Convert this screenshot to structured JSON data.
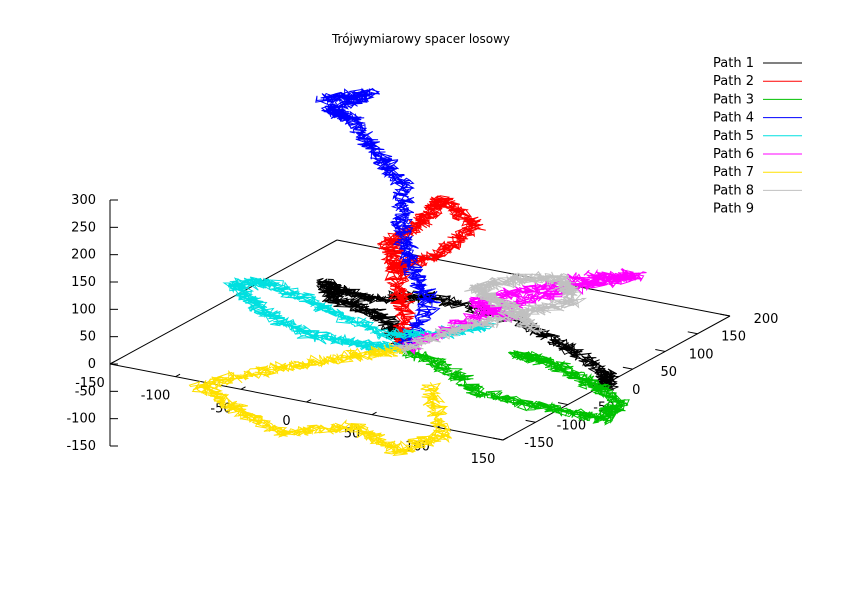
{
  "chart_data": {
    "type": "line",
    "title": "Trójwymiarowy spacer losowy",
    "xlabel": "",
    "ylabel": "",
    "zlabel": "",
    "xlim": [
      -150,
      150
    ],
    "ylim": [
      -150,
      200
    ],
    "zlim": [
      -150,
      300
    ],
    "x_ticks": [
      "-150",
      "-100",
      "-50",
      "0",
      "50",
      "100",
      "150"
    ],
    "y_ticks": [
      "-150",
      "-100",
      "-50",
      "0",
      "50",
      "100",
      "150",
      "200"
    ],
    "z_ticks": [
      "-150",
      "-100",
      "-50",
      "0",
      "50",
      "100",
      "150",
      "200",
      "250",
      "300"
    ],
    "legend_position": "top-right",
    "grid": false,
    "series": [
      {
        "name": "Path 1",
        "color": "#000000",
        "points": [
          [
            0,
            0,
            0
          ],
          [
            -30,
            30,
            25
          ],
          [
            -70,
            40,
            30
          ],
          [
            -90,
            60,
            40
          ],
          [
            -60,
            60,
            25
          ],
          [
            -20,
            80,
            35
          ],
          [
            40,
            90,
            15
          ],
          [
            90,
            60,
            10
          ],
          [
            140,
            30,
            0
          ],
          [
            150,
            10,
            -5
          ]
        ]
      },
      {
        "name": "Path 2",
        "color": "#ff0000",
        "points": [
          [
            0,
            0,
            0
          ],
          [
            -20,
            40,
            40
          ],
          [
            -40,
            70,
            80
          ],
          [
            -50,
            80,
            120
          ],
          [
            -30,
            90,
            160
          ],
          [
            -20,
            100,
            200
          ],
          [
            10,
            90,
            170
          ],
          [
            -10,
            70,
            120
          ],
          [
            -40,
            60,
            90
          ]
        ]
      },
      {
        "name": "Path 3",
        "color": "#00c000",
        "points": [
          [
            0,
            0,
            0
          ],
          [
            40,
            -20,
            0
          ],
          [
            80,
            -40,
            -20
          ],
          [
            120,
            -20,
            -40
          ],
          [
            150,
            0,
            -60
          ],
          [
            150,
            30,
            -50
          ],
          [
            130,
            20,
            -10
          ],
          [
            100,
            20,
            10
          ],
          [
            80,
            10,
            20
          ]
        ]
      },
      {
        "name": "Path 4",
        "color": "#0000ff",
        "points": [
          [
            0,
            0,
            0
          ],
          [
            -10,
            60,
            40
          ],
          [
            -40,
            90,
            80
          ],
          [
            -60,
            120,
            120
          ],
          [
            -80,
            160,
            160
          ],
          [
            -110,
            180,
            190
          ],
          [
            -140,
            200,
            230
          ],
          [
            -140,
            170,
            260
          ],
          [
            -120,
            190,
            290
          ],
          [
            -150,
            180,
            270
          ]
        ]
      },
      {
        "name": "Path 5",
        "color": "#00e0e0",
        "points": [
          [
            0,
            0,
            0
          ],
          [
            -20,
            -20,
            10
          ],
          [
            -60,
            -30,
            20
          ],
          [
            -100,
            -20,
            40
          ],
          [
            -130,
            0,
            60
          ],
          [
            -110,
            20,
            55
          ],
          [
            -70,
            20,
            30
          ],
          [
            -20,
            10,
            10
          ],
          [
            20,
            30,
            20
          ],
          [
            40,
            50,
            30
          ]
        ]
      },
      {
        "name": "Path 6",
        "color": "#ff00ff",
        "points": [
          [
            0,
            0,
            0
          ],
          [
            30,
            40,
            40
          ],
          [
            60,
            80,
            70
          ],
          [
            90,
            110,
            90
          ],
          [
            110,
            140,
            95
          ],
          [
            80,
            130,
            85
          ],
          [
            40,
            100,
            60
          ],
          [
            20,
            70,
            50
          ],
          [
            50,
            60,
            40
          ]
        ]
      },
      {
        "name": "Path 7",
        "color": "#ffe000",
        "points": [
          [
            0,
            0,
            0
          ],
          [
            -30,
            -30,
            -10
          ],
          [
            -70,
            -60,
            -30
          ],
          [
            -110,
            -90,
            -60
          ],
          [
            -80,
            -100,
            -80
          ],
          [
            -40,
            -110,
            -100
          ],
          [
            0,
            -80,
            -90
          ],
          [
            40,
            -90,
            -110
          ],
          [
            60,
            -60,
            -90
          ],
          [
            30,
            -20,
            -40
          ]
        ]
      },
      {
        "name": "Path 8",
        "color": "#c0c0c0",
        "points": [
          [
            0,
            0,
            0
          ],
          [
            20,
            40,
            20
          ],
          [
            50,
            70,
            40
          ],
          [
            80,
            100,
            60
          ],
          [
            60,
            120,
            80
          ],
          [
            30,
            110,
            70
          ],
          [
            10,
            90,
            55
          ],
          [
            40,
            80,
            45
          ],
          [
            70,
            60,
            30
          ]
        ]
      },
      {
        "name": "Path 9",
        "color": "",
        "points": []
      }
    ]
  }
}
